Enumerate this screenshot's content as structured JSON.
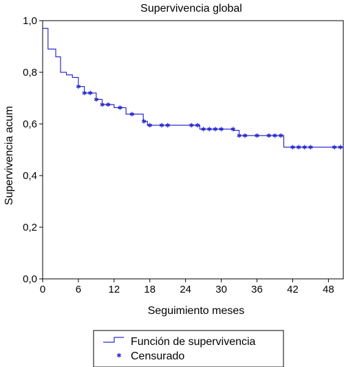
{
  "chart_data": {
    "type": "line",
    "title": "Supervivencia global",
    "xlabel": "Seguimiento meses",
    "ylabel": "Supervivencia acum",
    "xlim": [
      0,
      50.5
    ],
    "ylim": [
      0,
      1
    ],
    "xticks": [
      0,
      6,
      12,
      18,
      24,
      30,
      36,
      42,
      48
    ],
    "xtick_labels": [
      "0",
      "6",
      "12",
      "18",
      "24",
      "30",
      "36",
      "42",
      "48"
    ],
    "yticks": [
      0,
      0.2,
      0.4,
      0.6,
      0.8,
      1.0
    ],
    "ytick_labels": [
      "0,0",
      "0,2",
      "0,4",
      "0,6",
      "0,8",
      "1,0"
    ],
    "grid": false,
    "legend_position": "bottom-center",
    "colors": {
      "series": "#2b2bcc"
    },
    "series": [
      {
        "name": "Función de supervivencia",
        "kind": "step",
        "x": [
          0,
          0.9,
          2.2,
          3.0,
          4.0,
          5.0,
          6.0,
          7.0,
          9.0,
          10.0,
          12.0,
          14.0,
          16.9,
          17.6,
          26.4,
          32.0,
          33.0,
          40.5
        ],
        "y": [
          0.97,
          0.89,
          0.86,
          0.8,
          0.79,
          0.78,
          0.745,
          0.72,
          0.695,
          0.675,
          0.663,
          0.638,
          0.61,
          0.595,
          0.58,
          0.575,
          0.555,
          0.51
        ],
        "x_end": 50.5
      },
      {
        "name": "Censurado",
        "kind": "marker",
        "x": [
          6.0,
          7.0,
          8.0,
          9.0,
          10.0,
          11.0,
          13.0,
          15.0,
          17.0,
          18.0,
          20.0,
          21.0,
          25.0,
          26.0,
          27.0,
          28.0,
          29.0,
          30.0,
          32.0,
          33.0,
          34.0,
          36.0,
          38.0,
          39.0,
          40.0,
          42.0,
          43.0,
          44.0,
          45.0,
          49.0,
          50.0
        ],
        "y": [
          0.745,
          0.72,
          0.72,
          0.695,
          0.675,
          0.675,
          0.663,
          0.638,
          0.61,
          0.595,
          0.595,
          0.595,
          0.595,
          0.595,
          0.58,
          0.58,
          0.58,
          0.58,
          0.58,
          0.555,
          0.555,
          0.555,
          0.555,
          0.555,
          0.555,
          0.51,
          0.51,
          0.51,
          0.51,
          0.51,
          0.51
        ]
      }
    ]
  }
}
